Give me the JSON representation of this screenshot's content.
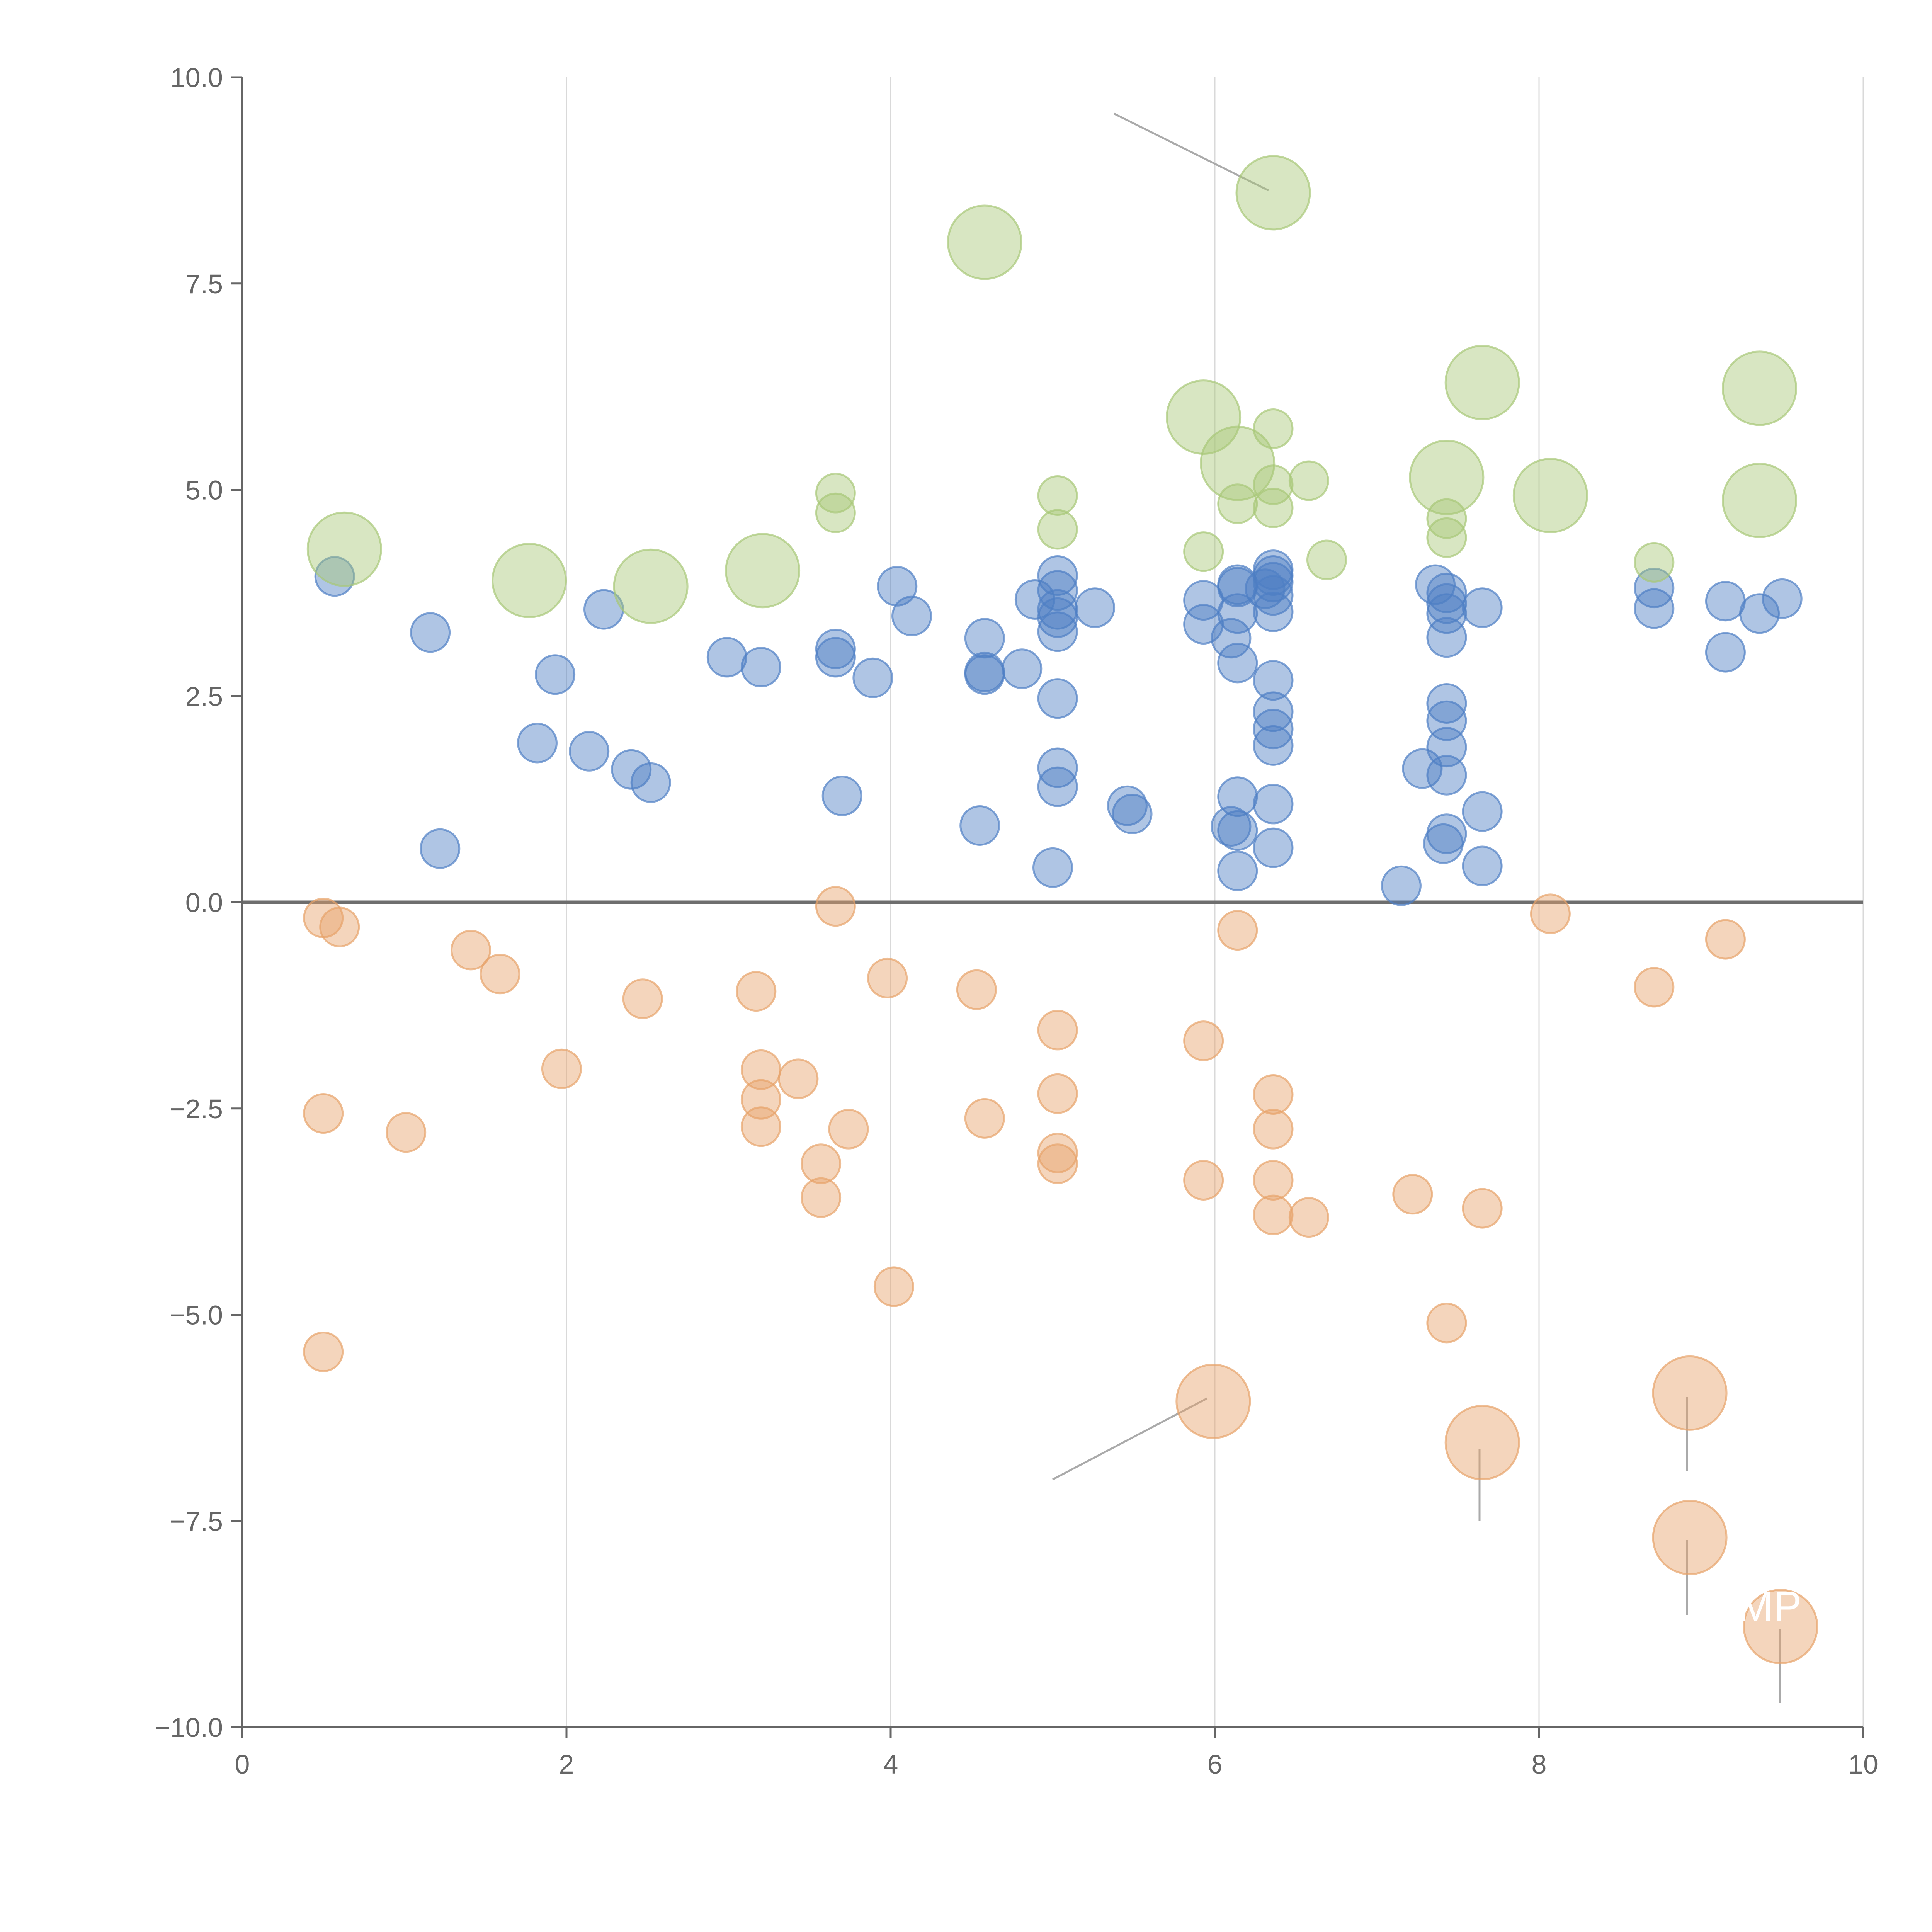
{
  "chart_data": {
    "type": "scatter",
    "subtype": "bubble",
    "title": "",
    "xlabel": "",
    "ylabel": "",
    "xlim": [
      0,
      10
    ],
    "ylim": [
      -10,
      10
    ],
    "xticks": [
      0,
      2,
      4,
      6,
      8,
      10
    ],
    "yticks": [
      -10,
      -7.5,
      -5,
      -2.5,
      0,
      2.5,
      5,
      7.5,
      10
    ],
    "x_tick_labels": [
      "0",
      "2",
      "4",
      "6",
      "8",
      "10"
    ],
    "y_tick_labels": [
      "−10.0",
      "−7.5",
      "−5.0",
      "−2.5",
      "0.0",
      "2.5",
      "5.0",
      "7.5",
      "10.0"
    ],
    "grid": "vertical",
    "zero_line": true,
    "legend": "none",
    "series": [
      {
        "name": "blue",
        "color": "#4e7fc4",
        "points": [
          {
            "x": 0.57,
            "y": 3.95,
            "size": 1
          },
          {
            "x": 1.16,
            "y": 3.27,
            "size": 1
          },
          {
            "x": 1.22,
            "y": 0.65,
            "size": 1
          },
          {
            "x": 1.82,
            "y": 1.93,
            "size": 1
          },
          {
            "x": 1.93,
            "y": 2.76,
            "size": 1
          },
          {
            "x": 2.14,
            "y": 1.83,
            "size": 1
          },
          {
            "x": 2.23,
            "y": 3.55,
            "size": 1
          },
          {
            "x": 2.4,
            "y": 1.61,
            "size": 1
          },
          {
            "x": 2.52,
            "y": 1.45,
            "size": 1
          },
          {
            "x": 2.99,
            "y": 2.97,
            "size": 1
          },
          {
            "x": 3.2,
            "y": 2.85,
            "size": 1
          },
          {
            "x": 3.66,
            "y": 3.07,
            "size": 1
          },
          {
            "x": 3.66,
            "y": 2.97,
            "size": 1
          },
          {
            "x": 3.7,
            "y": 1.29,
            "size": 1
          },
          {
            "x": 3.89,
            "y": 2.72,
            "size": 1
          },
          {
            "x": 4.04,
            "y": 3.83,
            "size": 1
          },
          {
            "x": 4.13,
            "y": 3.47,
            "size": 1
          },
          {
            "x": 4.55,
            "y": 0.93,
            "size": 1
          },
          {
            "x": 4.58,
            "y": 3.2,
            "size": 1
          },
          {
            "x": 4.58,
            "y": 2.79,
            "size": 1
          },
          {
            "x": 4.58,
            "y": 2.76,
            "size": 1
          },
          {
            "x": 4.81,
            "y": 2.83,
            "size": 1
          },
          {
            "x": 4.89,
            "y": 3.67,
            "size": 1
          },
          {
            "x": 5.03,
            "y": 3.96,
            "size": 1
          },
          {
            "x": 5.03,
            "y": 3.78,
            "size": 1
          },
          {
            "x": 5.03,
            "y": 3.55,
            "size": 1
          },
          {
            "x": 5.03,
            "y": 3.45,
            "size": 1
          },
          {
            "x": 5.03,
            "y": 3.28,
            "size": 1
          },
          {
            "x": 5.03,
            "y": 2.47,
            "size": 1
          },
          {
            "x": 5.03,
            "y": 1.63,
            "size": 1
          },
          {
            "x": 5.03,
            "y": 1.4,
            "size": 1
          },
          {
            "x": 5.0,
            "y": 0.42,
            "size": 1
          },
          {
            "x": 5.26,
            "y": 3.57,
            "size": 1
          },
          {
            "x": 5.46,
            "y": 1.17,
            "size": 1
          },
          {
            "x": 5.49,
            "y": 1.07,
            "size": 1
          },
          {
            "x": 5.93,
            "y": 3.66,
            "size": 1
          },
          {
            "x": 5.93,
            "y": 3.37,
            "size": 1
          },
          {
            "x": 6.1,
            "y": 3.2,
            "size": 1
          },
          {
            "x": 6.14,
            "y": 3.85,
            "size": 1
          },
          {
            "x": 6.14,
            "y": 3.82,
            "size": 1
          },
          {
            "x": 6.14,
            "y": 3.5,
            "size": 1
          },
          {
            "x": 6.14,
            "y": 2.9,
            "size": 1
          },
          {
            "x": 6.14,
            "y": 1.28,
            "size": 1
          },
          {
            "x": 6.1,
            "y": 0.92,
            "size": 1
          },
          {
            "x": 6.14,
            "y": 0.87,
            "size": 1
          },
          {
            "x": 6.14,
            "y": 0.38,
            "size": 1
          },
          {
            "x": 6.36,
            "y": 4.03,
            "size": 1
          },
          {
            "x": 6.36,
            "y": 3.96,
            "size": 1
          },
          {
            "x": 6.36,
            "y": 3.88,
            "size": 1
          },
          {
            "x": 6.31,
            "y": 3.8,
            "size": 1
          },
          {
            "x": 6.36,
            "y": 3.72,
            "size": 1
          },
          {
            "x": 6.36,
            "y": 3.52,
            "size": 1
          },
          {
            "x": 6.36,
            "y": 2.69,
            "size": 1
          },
          {
            "x": 6.36,
            "y": 2.31,
            "size": 1
          },
          {
            "x": 6.36,
            "y": 2.1,
            "size": 1
          },
          {
            "x": 6.36,
            "y": 1.9,
            "size": 1
          },
          {
            "x": 6.36,
            "y": 1.19,
            "size": 1
          },
          {
            "x": 6.36,
            "y": 0.66,
            "size": 1
          },
          {
            "x": 7.15,
            "y": 0.2,
            "size": 1
          },
          {
            "x": 7.28,
            "y": 1.62,
            "size": 1
          },
          {
            "x": 7.36,
            "y": 3.85,
            "size": 1
          },
          {
            "x": 7.43,
            "y": 3.75,
            "size": 1
          },
          {
            "x": 7.43,
            "y": 3.62,
            "size": 1
          },
          {
            "x": 7.43,
            "y": 3.5,
            "size": 1
          },
          {
            "x": 7.43,
            "y": 3.21,
            "size": 1
          },
          {
            "x": 7.43,
            "y": 2.41,
            "size": 1
          },
          {
            "x": 7.43,
            "y": 2.2,
            "size": 1
          },
          {
            "x": 7.43,
            "y": 1.88,
            "size": 1
          },
          {
            "x": 7.43,
            "y": 1.54,
            "size": 1
          },
          {
            "x": 7.43,
            "y": 0.83,
            "size": 1
          },
          {
            "x": 7.41,
            "y": 0.71,
            "size": 1
          },
          {
            "x": 7.65,
            "y": 3.57,
            "size": 1
          },
          {
            "x": 7.65,
            "y": 1.1,
            "size": 1
          },
          {
            "x": 7.65,
            "y": 0.44,
            "size": 1
          },
          {
            "x": 8.71,
            "y": 3.81,
            "size": 1
          },
          {
            "x": 8.71,
            "y": 3.56,
            "size": 1
          },
          {
            "x": 9.15,
            "y": 3.65,
            "size": 1
          },
          {
            "x": 9.15,
            "y": 3.03,
            "size": 1
          },
          {
            "x": 9.36,
            "y": 3.5,
            "size": 1
          },
          {
            "x": 9.5,
            "y": 3.68,
            "size": 1
          }
        ]
      },
      {
        "name": "green",
        "color": "#a8c878",
        "points": [
          {
            "x": 0.63,
            "y": 4.28,
            "size": 2
          },
          {
            "x": 1.77,
            "y": 3.9,
            "size": 2
          },
          {
            "x": 2.52,
            "y": 3.83,
            "size": 2
          },
          {
            "x": 3.21,
            "y": 4.02,
            "size": 2
          },
          {
            "x": 4.58,
            "y": 8.0,
            "size": 2
          },
          {
            "x": 5.93,
            "y": 5.88,
            "size": 2
          },
          {
            "x": 6.14,
            "y": 5.32,
            "size": 2
          },
          {
            "x": 6.36,
            "y": 8.6,
            "size": 2
          },
          {
            "x": 7.43,
            "y": 5.15,
            "size": 2
          },
          {
            "x": 7.65,
            "y": 6.3,
            "size": 2
          },
          {
            "x": 8.07,
            "y": 4.93,
            "size": 2
          },
          {
            "x": 9.36,
            "y": 6.23,
            "size": 2
          },
          {
            "x": 9.36,
            "y": 4.87,
            "size": 2
          },
          {
            "x": 3.66,
            "y": 4.96,
            "size": 1
          },
          {
            "x": 3.66,
            "y": 4.72,
            "size": 1
          },
          {
            "x": 5.03,
            "y": 4.93,
            "size": 1
          },
          {
            "x": 5.03,
            "y": 4.52,
            "size": 1
          },
          {
            "x": 5.93,
            "y": 4.25,
            "size": 1
          },
          {
            "x": 6.14,
            "y": 4.83,
            "size": 1
          },
          {
            "x": 6.36,
            "y": 5.74,
            "size": 1
          },
          {
            "x": 6.36,
            "y": 5.06,
            "size": 1
          },
          {
            "x": 6.36,
            "y": 4.78,
            "size": 1
          },
          {
            "x": 6.58,
            "y": 5.11,
            "size": 1
          },
          {
            "x": 6.69,
            "y": 4.15,
            "size": 1
          },
          {
            "x": 7.43,
            "y": 4.65,
            "size": 1
          },
          {
            "x": 7.43,
            "y": 4.42,
            "size": 1
          },
          {
            "x": 8.71,
            "y": 4.12,
            "size": 1
          }
        ]
      },
      {
        "name": "orange",
        "color": "#e7a26a",
        "points": [
          {
            "x": 0.5,
            "y": -0.19,
            "size": 1
          },
          {
            "x": 0.6,
            "y": -0.3,
            "size": 1
          },
          {
            "x": 0.5,
            "y": -2.56,
            "size": 1
          },
          {
            "x": 0.5,
            "y": -5.45,
            "size": 1
          },
          {
            "x": 1.01,
            "y": -2.79,
            "size": 1
          },
          {
            "x": 1.41,
            "y": -0.58,
            "size": 1
          },
          {
            "x": 1.59,
            "y": -0.87,
            "size": 1
          },
          {
            "x": 1.97,
            "y": -2.02,
            "size": 1
          },
          {
            "x": 2.47,
            "y": -1.17,
            "size": 1
          },
          {
            "x": 3.17,
            "y": -1.08,
            "size": 1
          },
          {
            "x": 3.2,
            "y": -2.03,
            "size": 1
          },
          {
            "x": 3.2,
            "y": -2.39,
            "size": 1
          },
          {
            "x": 3.2,
            "y": -2.72,
            "size": 1
          },
          {
            "x": 3.43,
            "y": -2.14,
            "size": 1
          },
          {
            "x": 3.57,
            "y": -3.17,
            "size": 1
          },
          {
            "x": 3.57,
            "y": -3.58,
            "size": 1
          },
          {
            "x": 3.66,
            "y": -0.05,
            "size": 1
          },
          {
            "x": 3.74,
            "y": -2.75,
            "size": 1
          },
          {
            "x": 3.98,
            "y": -0.92,
            "size": 1
          },
          {
            "x": 4.02,
            "y": -4.66,
            "size": 1
          },
          {
            "x": 4.53,
            "y": -1.06,
            "size": 1
          },
          {
            "x": 4.58,
            "y": -2.62,
            "size": 1
          },
          {
            "x": 5.03,
            "y": -1.55,
            "size": 1
          },
          {
            "x": 5.03,
            "y": -2.32,
            "size": 1
          },
          {
            "x": 5.03,
            "y": -3.04,
            "size": 1
          },
          {
            "x": 5.03,
            "y": -3.17,
            "size": 1
          },
          {
            "x": 5.93,
            "y": -1.68,
            "size": 1
          },
          {
            "x": 5.93,
            "y": -3.37,
            "size": 1
          },
          {
            "x": 6.14,
            "y": -0.34,
            "size": 1
          },
          {
            "x": 6.36,
            "y": -2.33,
            "size": 1
          },
          {
            "x": 6.36,
            "y": -2.75,
            "size": 1
          },
          {
            "x": 6.36,
            "y": -3.37,
            "size": 1
          },
          {
            "x": 6.36,
            "y": -3.79,
            "size": 1
          },
          {
            "x": 6.58,
            "y": -3.82,
            "size": 1
          },
          {
            "x": 7.22,
            "y": -3.54,
            "size": 1
          },
          {
            "x": 7.43,
            "y": -5.1,
            "size": 1
          },
          {
            "x": 7.65,
            "y": -3.71,
            "size": 1
          },
          {
            "x": 8.07,
            "y": -0.14,
            "size": 1
          },
          {
            "x": 8.71,
            "y": -1.03,
            "size": 1
          },
          {
            "x": 9.15,
            "y": -0.45,
            "size": 1
          },
          {
            "x": 5.99,
            "y": -6.05,
            "size": 2
          },
          {
            "x": 7.65,
            "y": -6.55,
            "size": 2
          },
          {
            "x": 8.93,
            "y": -5.95,
            "size": 2
          },
          {
            "x": 8.93,
            "y": -7.7,
            "size": 2
          },
          {
            "x": 9.49,
            "y": -8.78,
            "size": 2
          }
        ]
      }
    ],
    "annotations": [
      {
        "text": "MP",
        "x": 9.49,
        "y": -8.78
      }
    ]
  }
}
